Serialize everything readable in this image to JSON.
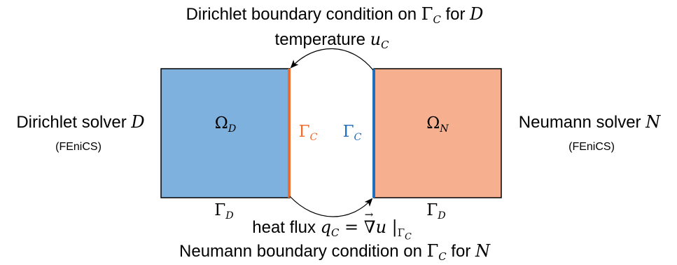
{
  "top": {
    "line1_prefix": "Dirichlet boundary condition on ",
    "line1_gamma": "Γ",
    "line1_gamma_sub": "C",
    "line1_mid": " for ",
    "line1_solver": "D",
    "line2_prefix": "temperature ",
    "line2_var": "u",
    "line2_sub": "C"
  },
  "left": {
    "title_prefix": "Dirichlet solver ",
    "title_symbol": "D",
    "subtitle": "(FEniCS)"
  },
  "right": {
    "title_prefix": "Neumann solver ",
    "title_symbol": "N",
    "subtitle": "(FEniCS)"
  },
  "domains": {
    "left_omega": "Ω",
    "left_sub": "D",
    "right_omega": "Ω",
    "right_sub": "N",
    "gamma_c_left": "Γ",
    "gamma_c_left_sub": "C",
    "gamma_c_right": "Γ",
    "gamma_c_right_sub": "C",
    "gamma_d_left": "Γ",
    "gamma_d_left_sub": "D",
    "gamma_d_right": "Γ",
    "gamma_d_right_sub": "D"
  },
  "bottom": {
    "flux_prefix": "heat flux ",
    "flux_q": "q",
    "flux_q_sub": "C",
    "flux_eq": " = ",
    "flux_nabla": "∇",
    "flux_arrow": "→",
    "flux_u": "u",
    "flux_bar": " |",
    "flux_gamma": "Γ",
    "flux_gamma_sub": "C",
    "line2_prefix": "Neumann boundary condition on ",
    "line2_gamma": "Γ",
    "line2_gamma_sub": "C",
    "line2_mid": " for ",
    "line2_solver": "N"
  },
  "colors": {
    "left_fill": "#7eb1dd",
    "right_fill": "#f7b08f",
    "orange": "#ef6a2d",
    "blue": "#1f6fc1",
    "outline": "#000000"
  }
}
